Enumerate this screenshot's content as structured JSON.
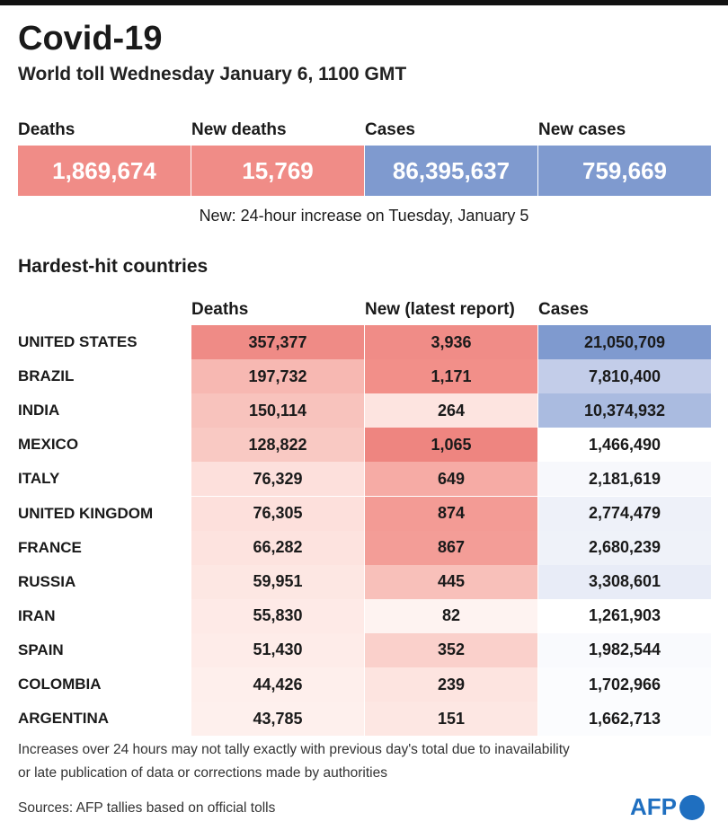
{
  "header": {
    "title": "Covid-19",
    "subtitle": "World toll Wednesday January 6, 1100 GMT"
  },
  "summary": {
    "items": [
      {
        "label": "Deaths",
        "value": "1,869,674",
        "color": "#f08c87"
      },
      {
        "label": "New deaths",
        "value": "15,769",
        "color": "#f08c87"
      },
      {
        "label": "Cases",
        "value": "86,395,637",
        "color": "#7f9acf"
      },
      {
        "label": "New cases",
        "value": "759,669",
        "color": "#7f9acf"
      }
    ],
    "note": "New: 24-hour increase on Tuesday, January 5"
  },
  "table": {
    "title": "Hardest-hit countries",
    "columns": [
      "Deaths",
      "New (latest report)",
      "Cases"
    ],
    "rows": [
      {
        "country": "UNITED STATES",
        "cells": [
          "357,377",
          "3,936",
          "21,050,709"
        ],
        "colors": [
          "#ef8b86",
          "#f08c87",
          "#7f9acf"
        ]
      },
      {
        "country": "BRAZIL",
        "cells": [
          "197,732",
          "1,171",
          "7,810,400"
        ],
        "colors": [
          "#f7b8b2",
          "#f28f89",
          "#c3cde9"
        ]
      },
      {
        "country": "INDIA",
        "cells": [
          "150,114",
          "264",
          "10,374,932"
        ],
        "colors": [
          "#f8c3bd",
          "#fde4e0",
          "#aabbe0"
        ]
      },
      {
        "country": "MEXICO",
        "cells": [
          "128,822",
          "1,065",
          "1,466,490"
        ],
        "colors": [
          "#f9c9c3",
          "#ee8580",
          "#ffffff"
        ]
      },
      {
        "country": "ITALY",
        "cells": [
          "76,329",
          "649",
          "2,181,619"
        ],
        "colors": [
          "#fde0dc",
          "#f6aba5",
          "#f7f8fc"
        ]
      },
      {
        "country": "UNITED KINGDOM",
        "cells": [
          "76,305",
          "874",
          "2,774,479"
        ],
        "colors": [
          "#fde0dc",
          "#f39b95",
          "#eef1f9"
        ]
      },
      {
        "country": "FRANCE",
        "cells": [
          "66,282",
          "867",
          "2,680,239"
        ],
        "colors": [
          "#fde3df",
          "#f39d97",
          "#eff2f9"
        ]
      },
      {
        "country": "RUSSIA",
        "cells": [
          "59,951",
          "445",
          "3,308,601"
        ],
        "colors": [
          "#fde7e3",
          "#f8c0ba",
          "#e8ecf7"
        ]
      },
      {
        "country": "IRAN",
        "cells": [
          "55,830",
          "82",
          "1,261,903"
        ],
        "colors": [
          "#feeae7",
          "#fef3f1",
          "#ffffff"
        ]
      },
      {
        "country": "SPAIN",
        "cells": [
          "51,430",
          "352",
          "1,982,544"
        ],
        "colors": [
          "#feece9",
          "#fad0cb",
          "#f9fafd"
        ]
      },
      {
        "country": "COLOMBIA",
        "cells": [
          "44,426",
          "239",
          "1,702,966"
        ],
        "colors": [
          "#feefec",
          "#fde4e0",
          "#fbfcfe"
        ]
      },
      {
        "country": "ARGENTINA",
        "cells": [
          "43,785",
          "151",
          "1,662,713"
        ],
        "colors": [
          "#fef0ed",
          "#fde7e3",
          "#fbfcfe"
        ]
      }
    ]
  },
  "footer": {
    "notes": [
      "Increases over 24 hours may not tally exactly with previous day's total due to inavailability",
      "or late publication of data or corrections made by authorities"
    ],
    "source": "Sources: AFP tallies based on official tolls",
    "logo": "AFP"
  }
}
